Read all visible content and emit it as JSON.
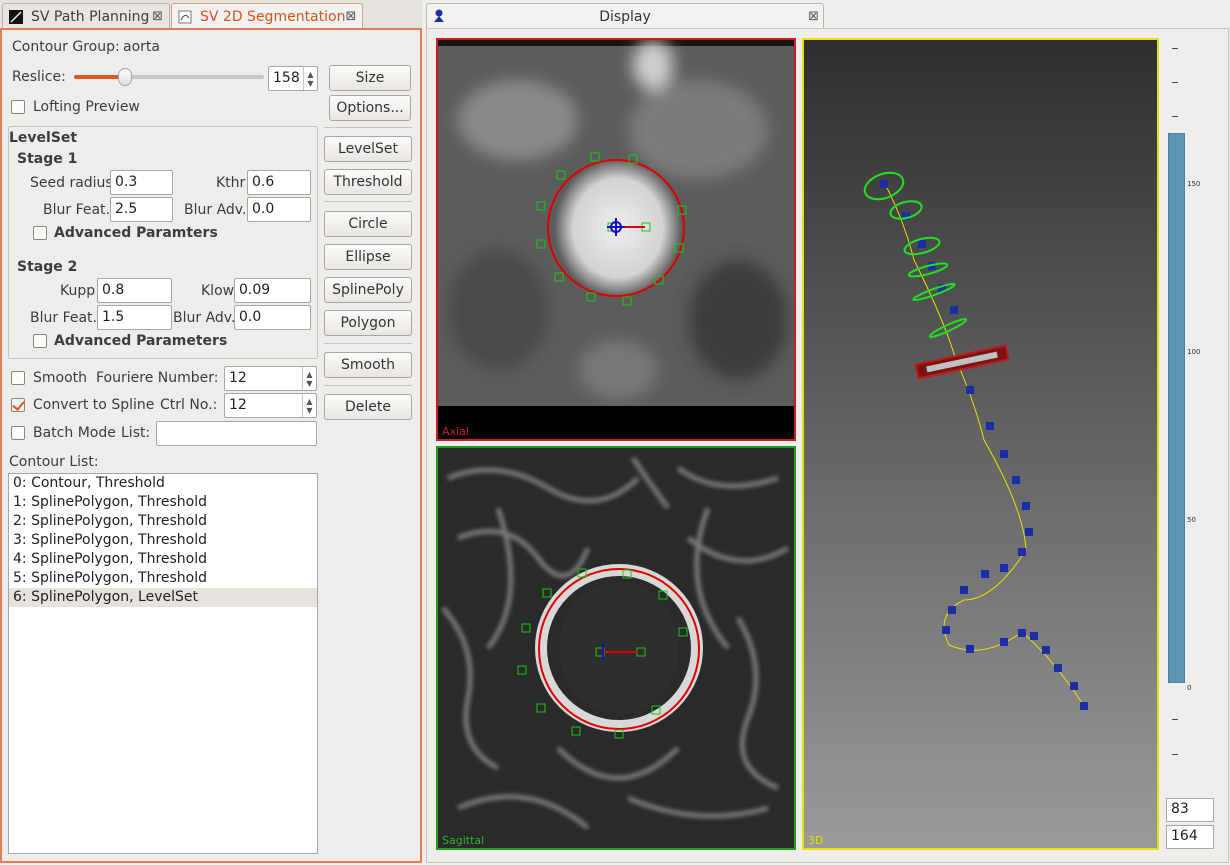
{
  "tabs": {
    "path_planning": "SV Path Planning",
    "segmentation": "SV 2D Segmentation"
  },
  "segmentation": {
    "contour_group_label": "Contour Group:",
    "contour_group_value": "aorta",
    "reslice_label": "Reslice:",
    "reslice_value": "158",
    "reslice_fraction": 0.27,
    "size_button": "Size",
    "lofting_preview_label": "Lofting Preview",
    "options_button": "Options...",
    "levelset": {
      "title": "LevelSet",
      "stage1_title": "Stage 1",
      "seed_radius_label": "Seed radius",
      "seed_radius_value": "0.3",
      "kthr_label": "Kthr",
      "kthr_value": "0.6",
      "blur_feat1_label": "Blur Feat.",
      "blur_feat1_value": "2.5",
      "blur_adv1_label": "Blur Adv.",
      "blur_adv1_value": "0.0",
      "advanced1_label": "Advanced  Paramters",
      "stage2_title": "Stage 2",
      "kupp_label": "Kupp",
      "kupp_value": "0.8",
      "klow_label": "Klow",
      "klow_value": "0.09",
      "blur_feat2_label": "Blur Feat.",
      "blur_feat2_value": "1.5",
      "blur_adv2_label": "Blur Adv.",
      "blur_adv2_value": "0.0",
      "advanced2_label": "Advanced Parameters"
    },
    "buttons": {
      "levelset": "LevelSet",
      "threshold": "Threshold",
      "circle": "Circle",
      "ellipse": "Ellipse",
      "splinepoly": "SplinePoly",
      "polygon": "Polygon",
      "smooth": "Smooth",
      "delete": "Delete"
    },
    "smooth_label": "Smooth",
    "fourier_label": "Fouriere Number:",
    "fourier_value": "12",
    "convert_label": "Convert to Spline",
    "convert_checked": true,
    "ctrl_label": "Ctrl No.:",
    "ctrl_value": "12",
    "batch_label": "Batch Mode",
    "list_label": "List:",
    "list_value": "",
    "contour_list_label": "Contour List:",
    "contours": [
      "0: Contour, Threshold",
      "1: SplinePolygon, Threshold",
      "2: SplinePolygon, Threshold",
      "3: SplinePolygon, Threshold",
      "4: SplinePolygon, Threshold",
      "5: SplinePolygon, Threshold",
      "6: SplinePolygon, LevelSet"
    ],
    "selected_contour_index": 6
  },
  "display": {
    "title": "Display",
    "axial_label": "Axial",
    "sagittal_label": "Sagittal",
    "view3d_label": "3D",
    "colors": {
      "axial_border": "#c81e1e",
      "sagittal_border": "#1e9c1e",
      "view3d_border": "#e8e000",
      "contour": "#e00000",
      "handles": "#19c819",
      "path_points": "#1010c0",
      "scale_bar": "#5e96b2"
    },
    "scale_ticks": [
      "150",
      "100",
      "50",
      "0"
    ],
    "coord_x": "83",
    "coord_y": "164"
  }
}
